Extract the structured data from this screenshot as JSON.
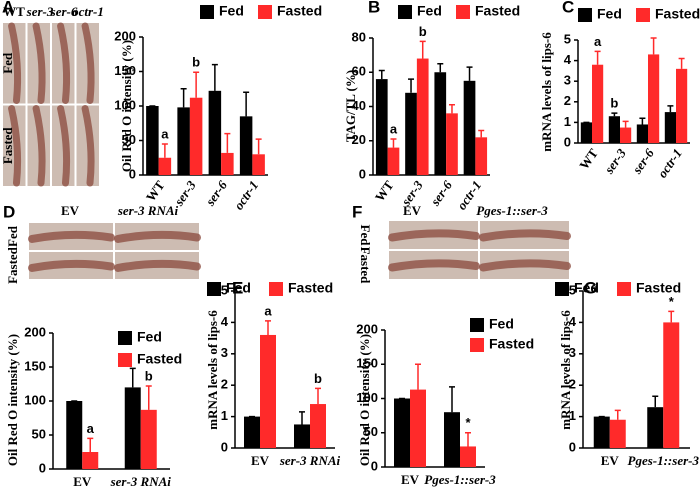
{
  "chart_data": [
    {
      "type": "bar",
      "panel": "A",
      "y_label": "Oil Red O intensity (%)",
      "image_column_labels": [
        "WT",
        "ser-3",
        "ser-6",
        "octr-1"
      ],
      "image_row_labels": [
        "Fed",
        "Fasted"
      ],
      "categories": [
        "WT",
        "ser-3",
        "ser-6",
        "octr-1"
      ],
      "series": [
        {
          "name": "Fed",
          "color": "#000000",
          "values": [
            100,
            98,
            122,
            85
          ],
          "errors": [
            0,
            27,
            38,
            35
          ]
        },
        {
          "name": "Fasted",
          "color": "#ff2a2a",
          "values": [
            25,
            112,
            32,
            30
          ],
          "errors": [
            20,
            37,
            28,
            22
          ]
        }
      ],
      "annotations": [
        {
          "text": "a",
          "category": "WT",
          "series": "Fasted"
        },
        {
          "text": "b",
          "category": "ser-3",
          "series": "Fasted"
        }
      ],
      "ylim": [
        0,
        200
      ],
      "yticks": [
        0,
        50,
        100,
        150,
        200
      ]
    },
    {
      "type": "bar",
      "panel": "B",
      "y_label": "TAG/TL (%)",
      "categories": [
        "WT",
        "ser-3",
        "ser-6",
        "octr-1"
      ],
      "series": [
        {
          "name": "Fed",
          "color": "#000000",
          "values": [
            56,
            48,
            60,
            55
          ],
          "errors": [
            5,
            8,
            5,
            8
          ]
        },
        {
          "name": "Fasted",
          "color": "#ff2a2a",
          "values": [
            16,
            68,
            36,
            22
          ],
          "errors": [
            5,
            10,
            5,
            4
          ]
        }
      ],
      "annotations": [
        {
          "text": "a",
          "category": "WT",
          "series": "Fasted"
        },
        {
          "text": "b",
          "category": "ser-3",
          "series": "Fasted"
        }
      ],
      "ylim": [
        0,
        80
      ],
      "yticks": [
        0,
        20,
        40,
        60,
        80
      ]
    },
    {
      "type": "bar",
      "panel": "C",
      "y_label": "mRNA levels of lips-6",
      "categories": [
        "WT",
        "ser-3",
        "ser-6",
        "octr-1"
      ],
      "series": [
        {
          "name": "Fed",
          "color": "#000000",
          "values": [
            1,
            1.3,
            0.9,
            1.5
          ],
          "errors": [
            0,
            0.15,
            0.3,
            0.3
          ]
        },
        {
          "name": "Fasted",
          "color": "#ff2a2a",
          "values": [
            3.8,
            0.75,
            4.3,
            3.6
          ],
          "errors": [
            0.65,
            0.3,
            0.8,
            0.5
          ]
        }
      ],
      "annotations": [
        {
          "text": "a",
          "category": "WT",
          "series": "Fasted"
        },
        {
          "text": "b",
          "category": "ser-3",
          "series": "Fed"
        }
      ],
      "ylim": [
        0,
        5
      ],
      "yticks": [
        0,
        1,
        2,
        3,
        4,
        5
      ]
    },
    {
      "type": "bar",
      "panel": "D",
      "y_label": "Oil Red O intensity (%)",
      "image_column_labels": [
        "EV",
        "ser-3 RNAi"
      ],
      "image_row_labels": [
        "Fed",
        "Fasted"
      ],
      "categories": [
        "EV",
        "ser-3 RNAi"
      ],
      "series": [
        {
          "name": "Fed",
          "color": "#000000",
          "values": [
            100,
            120
          ],
          "errors": [
            0,
            28
          ]
        },
        {
          "name": "Fasted",
          "color": "#ff2a2a",
          "values": [
            25,
            87
          ],
          "errors": [
            20,
            35
          ]
        }
      ],
      "annotations": [
        {
          "text": "a",
          "category": "EV",
          "series": "Fasted"
        },
        {
          "text": "b",
          "category": "ser-3 RNAi",
          "series": "Fasted"
        }
      ],
      "ylim": [
        0,
        200
      ],
      "yticks": [
        0,
        50,
        100,
        150,
        200
      ]
    },
    {
      "type": "bar",
      "panel": "E",
      "y_label": "mRNA levels of lips-6",
      "categories": [
        "EV",
        "ser-3 RNAi"
      ],
      "series": [
        {
          "name": "Fed",
          "color": "#000000",
          "values": [
            1,
            0.75
          ],
          "errors": [
            0,
            0.4
          ]
        },
        {
          "name": "Fasted",
          "color": "#ff2a2a",
          "values": [
            3.6,
            1.4
          ],
          "errors": [
            0.45,
            0.5
          ]
        }
      ],
      "annotations": [
        {
          "text": "a",
          "category": "EV",
          "series": "Fasted"
        },
        {
          "text": "b",
          "category": "ser-3 RNAi",
          "series": "Fasted"
        }
      ],
      "ylim": [
        0,
        5
      ],
      "yticks": [
        0,
        1,
        2,
        3,
        4,
        5
      ]
    },
    {
      "type": "bar",
      "panel": "F",
      "y_label": "Oil Red O intensity (%)",
      "image_column_labels": [
        "EV",
        "Pges-1::ser-3"
      ],
      "image_row_labels": [
        "Fed",
        "Fasted"
      ],
      "categories": [
        "EV",
        "Pges-1::ser-3"
      ],
      "series": [
        {
          "name": "Fed",
          "color": "#000000",
          "values": [
            100,
            80
          ],
          "errors": [
            0,
            37
          ]
        },
        {
          "name": "Fasted",
          "color": "#ff2a2a",
          "values": [
            113,
            30
          ],
          "errors": [
            37,
            20
          ]
        }
      ],
      "annotations": [
        {
          "text": "*",
          "category": "Pges-1::ser-3",
          "series": "Fasted"
        }
      ],
      "ylim": [
        0,
        200
      ],
      "yticks": [
        0,
        50,
        100,
        150,
        200
      ]
    },
    {
      "type": "bar",
      "panel": "G",
      "y_label": "mRNA levels of lips-6",
      "categories": [
        "EV",
        "Pges-1::ser-3"
      ],
      "series": [
        {
          "name": "Fed",
          "color": "#000000",
          "values": [
            1,
            1.3
          ],
          "errors": [
            0,
            0.35
          ]
        },
        {
          "name": "Fasted",
          "color": "#ff2a2a",
          "values": [
            0.9,
            4.0
          ],
          "errors": [
            0.3,
            0.35
          ]
        }
      ],
      "annotations": [
        {
          "text": "*",
          "category": "Pges-1::ser-3",
          "series": "Fasted"
        }
      ],
      "ylim": [
        0,
        5
      ],
      "yticks": [
        0,
        1,
        2,
        3,
        4,
        5
      ]
    }
  ]
}
